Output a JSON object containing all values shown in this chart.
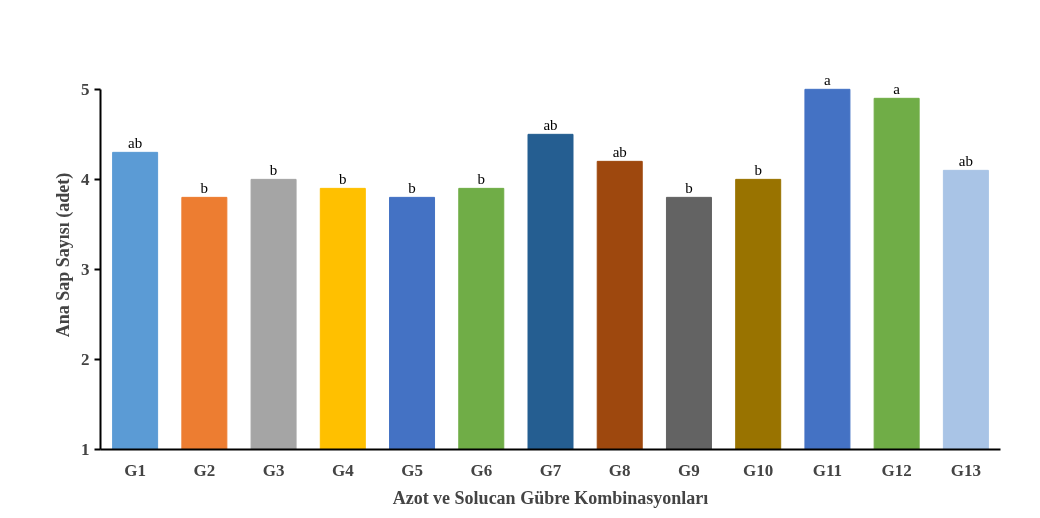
{
  "chart_data": {
    "type": "bar",
    "xlabel": "Azot ve Solucan Gübre Kombinasyonları",
    "ylabel": "Ana Sap Sayısı (adet)",
    "categories": [
      "G1",
      "G2",
      "G3",
      "G4",
      "G5",
      "G6",
      "G7",
      "G8",
      "G9",
      "G10",
      "G11",
      "G12",
      "G13"
    ],
    "values": [
      4.3,
      3.8,
      4.0,
      3.9,
      3.8,
      3.9,
      4.5,
      4.2,
      3.8,
      4.0,
      5.0,
      4.9,
      4.1
    ],
    "colors": [
      "#5b9bd5",
      "#ed7d31",
      "#a5a5a5",
      "#ffc000",
      "#4472c4",
      "#70ad47",
      "#255e91",
      "#9e480e",
      "#636363",
      "#997300",
      "#4472c4",
      "#70ad47",
      "#a9c4e6"
    ],
    "ylim": [
      1,
      5
    ],
    "yticks": [
      1,
      2,
      3,
      4,
      5
    ],
    "grid": false,
    "annotations": [
      {
        "text": "ab",
        "x": "G1",
        "y": 4.3
      },
      {
        "text": "b",
        "x": "G2",
        "y": 3.8
      },
      {
        "text": "b",
        "x": "G3",
        "y": 4.0
      },
      {
        "text": "b",
        "x": "G4",
        "y": 3.9
      },
      {
        "text": "b",
        "x": "G5",
        "y": 3.8
      },
      {
        "text": "b",
        "x": "G6",
        "y": 3.9
      },
      {
        "text": "ab",
        "x": "G7",
        "y": 4.5
      },
      {
        "text": "ab",
        "x": "G8",
        "y": 4.2
      },
      {
        "text": "b",
        "x": "G9",
        "y": 3.8
      },
      {
        "text": "b",
        "x": "G10",
        "y": 4.0
      },
      {
        "text": "a",
        "x": "G11",
        "y": 5.0
      },
      {
        "text": "a",
        "x": "G12",
        "y": 4.9
      },
      {
        "text": "ab",
        "x": "G13",
        "y": 4.1
      }
    ]
  }
}
